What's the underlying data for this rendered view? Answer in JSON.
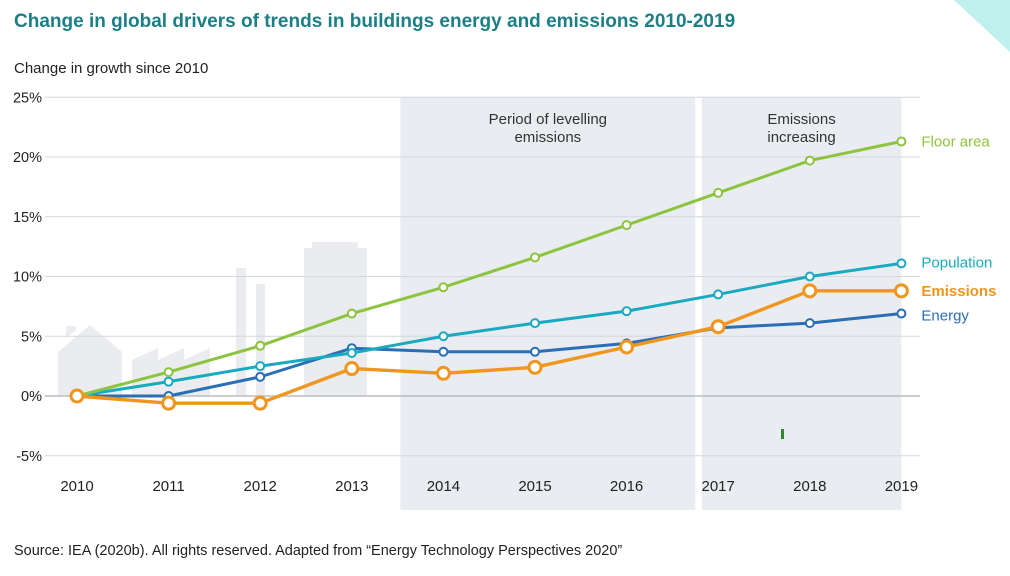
{
  "title": "Change in global drivers of trends in buildings energy and emissions 2010-2019",
  "source": "Source: IEA (2020b). All rights reserved. Adapted from “Energy Technology Perspectives 2020”",
  "colors": {
    "title": "#1d7f86",
    "floor_area": "#8cc43f",
    "population": "#1aaac0",
    "emissions": "#f0961e",
    "energy": "#2a6eb5",
    "shade": "#e9ecf0"
  },
  "chart_data": {
    "type": "line",
    "ylabel": "Change in growth since 2010",
    "x": [
      "2010",
      "2011",
      "2012",
      "2013",
      "2014",
      "2015",
      "2016",
      "2017",
      "2018",
      "2019"
    ],
    "ylim": [
      -5,
      25
    ],
    "yticks": [
      -5,
      0,
      5,
      10,
      15,
      20,
      25
    ],
    "ytick_labels": [
      "-5%",
      "0%",
      "5%",
      "10%",
      "15%",
      "20%",
      "25%"
    ],
    "grid": true,
    "legend_placement": "right (labels at line ends)",
    "series": [
      {
        "name": "Floor area",
        "values": [
          0,
          2.0,
          4.2,
          6.9,
          9.1,
          11.6,
          14.3,
          17.0,
          19.7,
          21.3
        ]
      },
      {
        "name": "Population",
        "values": [
          0,
          1.2,
          2.5,
          3.6,
          5.0,
          6.1,
          7.1,
          8.5,
          10.0,
          11.1
        ]
      },
      {
        "name": "Emissions",
        "values": [
          0,
          -0.6,
          -0.6,
          2.3,
          1.9,
          2.4,
          4.1,
          5.8,
          8.8,
          8.8
        ]
      },
      {
        "name": "Energy",
        "values": [
          0,
          0,
          1.6,
          4.0,
          3.7,
          3.7,
          4.4,
          5.7,
          6.1,
          6.9
        ]
      }
    ],
    "annotations": [
      {
        "text_lines": [
          "Period of levelling",
          "emissions"
        ],
        "x_start": "2014",
        "x_end": "2016"
      },
      {
        "text_lines": [
          "Emissions",
          "increasing"
        ],
        "x_start": "2017",
        "x_end": "2019"
      }
    ]
  }
}
